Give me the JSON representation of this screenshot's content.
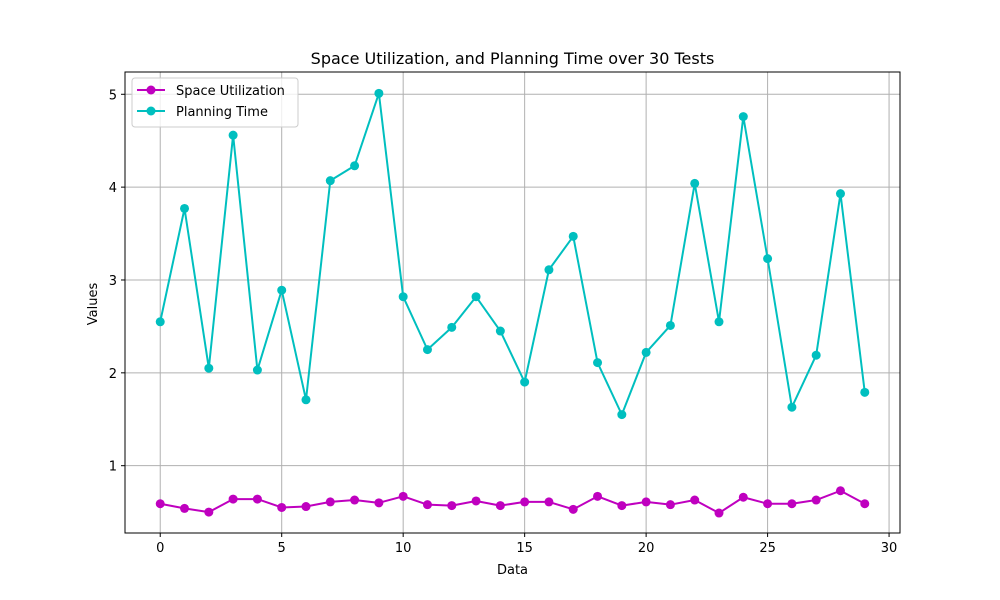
{
  "chart_data": {
    "type": "line",
    "title": "Space Utilization, and Planning Time over 30 Tests",
    "xlabel": "Data",
    "ylabel": "Values",
    "xlim": [
      -1.45,
      30.45
    ],
    "ylim": [
      0.275,
      5.24
    ],
    "xticks": [
      0,
      5,
      10,
      15,
      20,
      25,
      30
    ],
    "yticks": [
      1,
      2,
      3,
      4,
      5
    ],
    "grid": true,
    "legend_position": "top-left",
    "x": [
      0,
      1,
      2,
      3,
      4,
      5,
      6,
      7,
      8,
      9,
      10,
      11,
      12,
      13,
      14,
      15,
      16,
      17,
      18,
      19,
      20,
      21,
      22,
      23,
      24,
      25,
      26,
      27,
      28,
      29
    ],
    "series": [
      {
        "name": "Space Utilization",
        "color": "#bf00bf",
        "values": [
          0.59,
          0.54,
          0.5,
          0.64,
          0.64,
          0.55,
          0.56,
          0.61,
          0.63,
          0.6,
          0.67,
          0.58,
          0.57,
          0.62,
          0.57,
          0.61,
          0.61,
          0.53,
          0.67,
          0.57,
          0.61,
          0.58,
          0.63,
          0.49,
          0.66,
          0.59,
          0.59,
          0.63,
          0.73,
          0.59
        ]
      },
      {
        "name": "Planning Time",
        "color": "#00bfbf",
        "values": [
          2.55,
          3.77,
          2.05,
          4.56,
          2.03,
          2.89,
          1.71,
          4.07,
          4.23,
          5.01,
          2.82,
          2.25,
          2.49,
          2.82,
          2.45,
          1.9,
          3.11,
          3.47,
          2.11,
          1.55,
          2.22,
          2.51,
          4.04,
          2.55,
          4.76,
          3.23,
          1.63,
          2.19,
          3.93,
          1.79
        ]
      }
    ]
  }
}
